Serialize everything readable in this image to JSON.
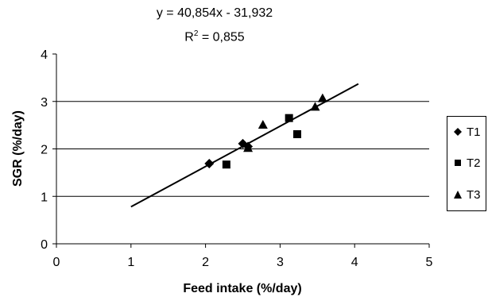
{
  "chart_data": {
    "type": "scatter",
    "xlabel": "Feed intake (%/day)",
    "ylabel": "SGR (%/day)",
    "xlim": [
      0,
      5
    ],
    "ylim": [
      0,
      4
    ],
    "xticks": [
      0,
      1,
      2,
      3,
      4,
      5
    ],
    "yticks": [
      0,
      1,
      2,
      3,
      4
    ],
    "grid": "horizontal",
    "legend_position": "right",
    "annotations": {
      "equation": "y = 40,854x - 31,932",
      "r2_prefix": "R",
      "r2_exp": "2",
      "r2_value": " = 0,855"
    },
    "trendline": {
      "x": [
        1.0,
        4.05
      ],
      "y": [
        0.78,
        3.37
      ]
    },
    "series": [
      {
        "name": "T1",
        "marker": "diamond",
        "points": [
          [
            2.05,
            1.69
          ],
          [
            2.5,
            2.11
          ],
          [
            2.57,
            2.05
          ]
        ]
      },
      {
        "name": "T2",
        "marker": "square",
        "points": [
          [
            2.28,
            1.67
          ],
          [
            3.12,
            2.65
          ],
          [
            3.23,
            2.31
          ]
        ]
      },
      {
        "name": "T3",
        "marker": "triangle",
        "points": [
          [
            2.77,
            2.51
          ],
          [
            3.47,
            2.89
          ],
          [
            3.57,
            3.07
          ],
          [
            2.57,
            2.02
          ]
        ]
      }
    ],
    "colors": {
      "marker": "#000000",
      "line": "#000000",
      "grid": "#000000"
    }
  }
}
